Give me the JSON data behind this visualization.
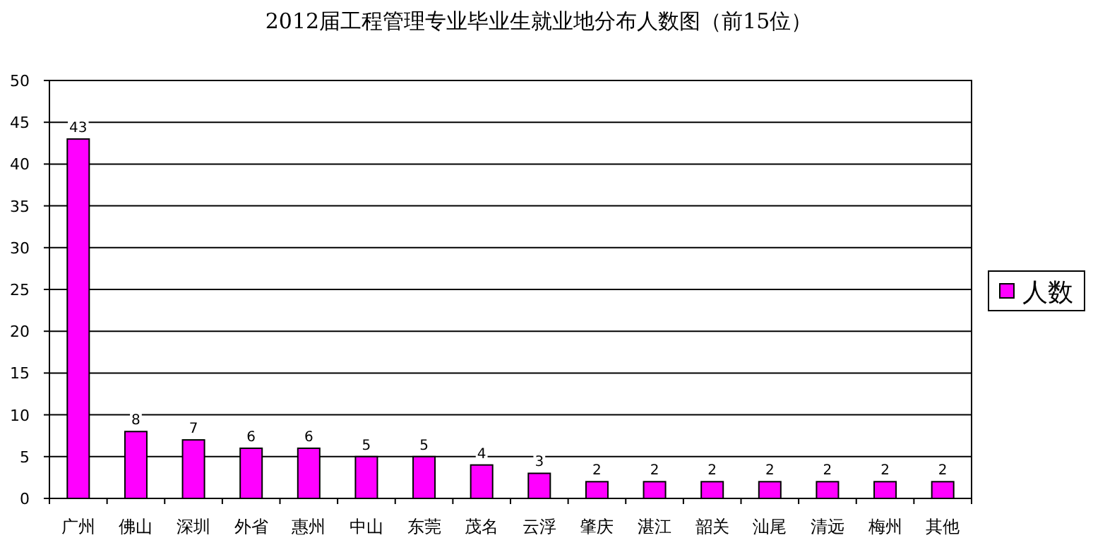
{
  "chart_data": {
    "type": "bar",
    "title": "2012届工程管理专业毕业生就业地分布人数图（前15位）",
    "categories": [
      "广州",
      "佛山",
      "深圳",
      "外省",
      "惠州",
      "中山",
      "东莞",
      "茂名",
      "云浮",
      "肇庆",
      "湛江",
      "韶关",
      "汕尾",
      "清远",
      "梅州",
      "其他"
    ],
    "series": [
      {
        "name": "人数",
        "color": "#ff00ff",
        "values": [
          43,
          8,
          7,
          6,
          6,
          5,
          5,
          4,
          3,
          2,
          2,
          2,
          2,
          2,
          2,
          2
        ]
      }
    ],
    "ylim": [
      0,
      50
    ],
    "yticks": [
      0,
      5,
      10,
      15,
      20,
      25,
      30,
      35,
      40,
      45,
      50
    ],
    "grid": "y",
    "legend": "right",
    "data_labels": true
  }
}
